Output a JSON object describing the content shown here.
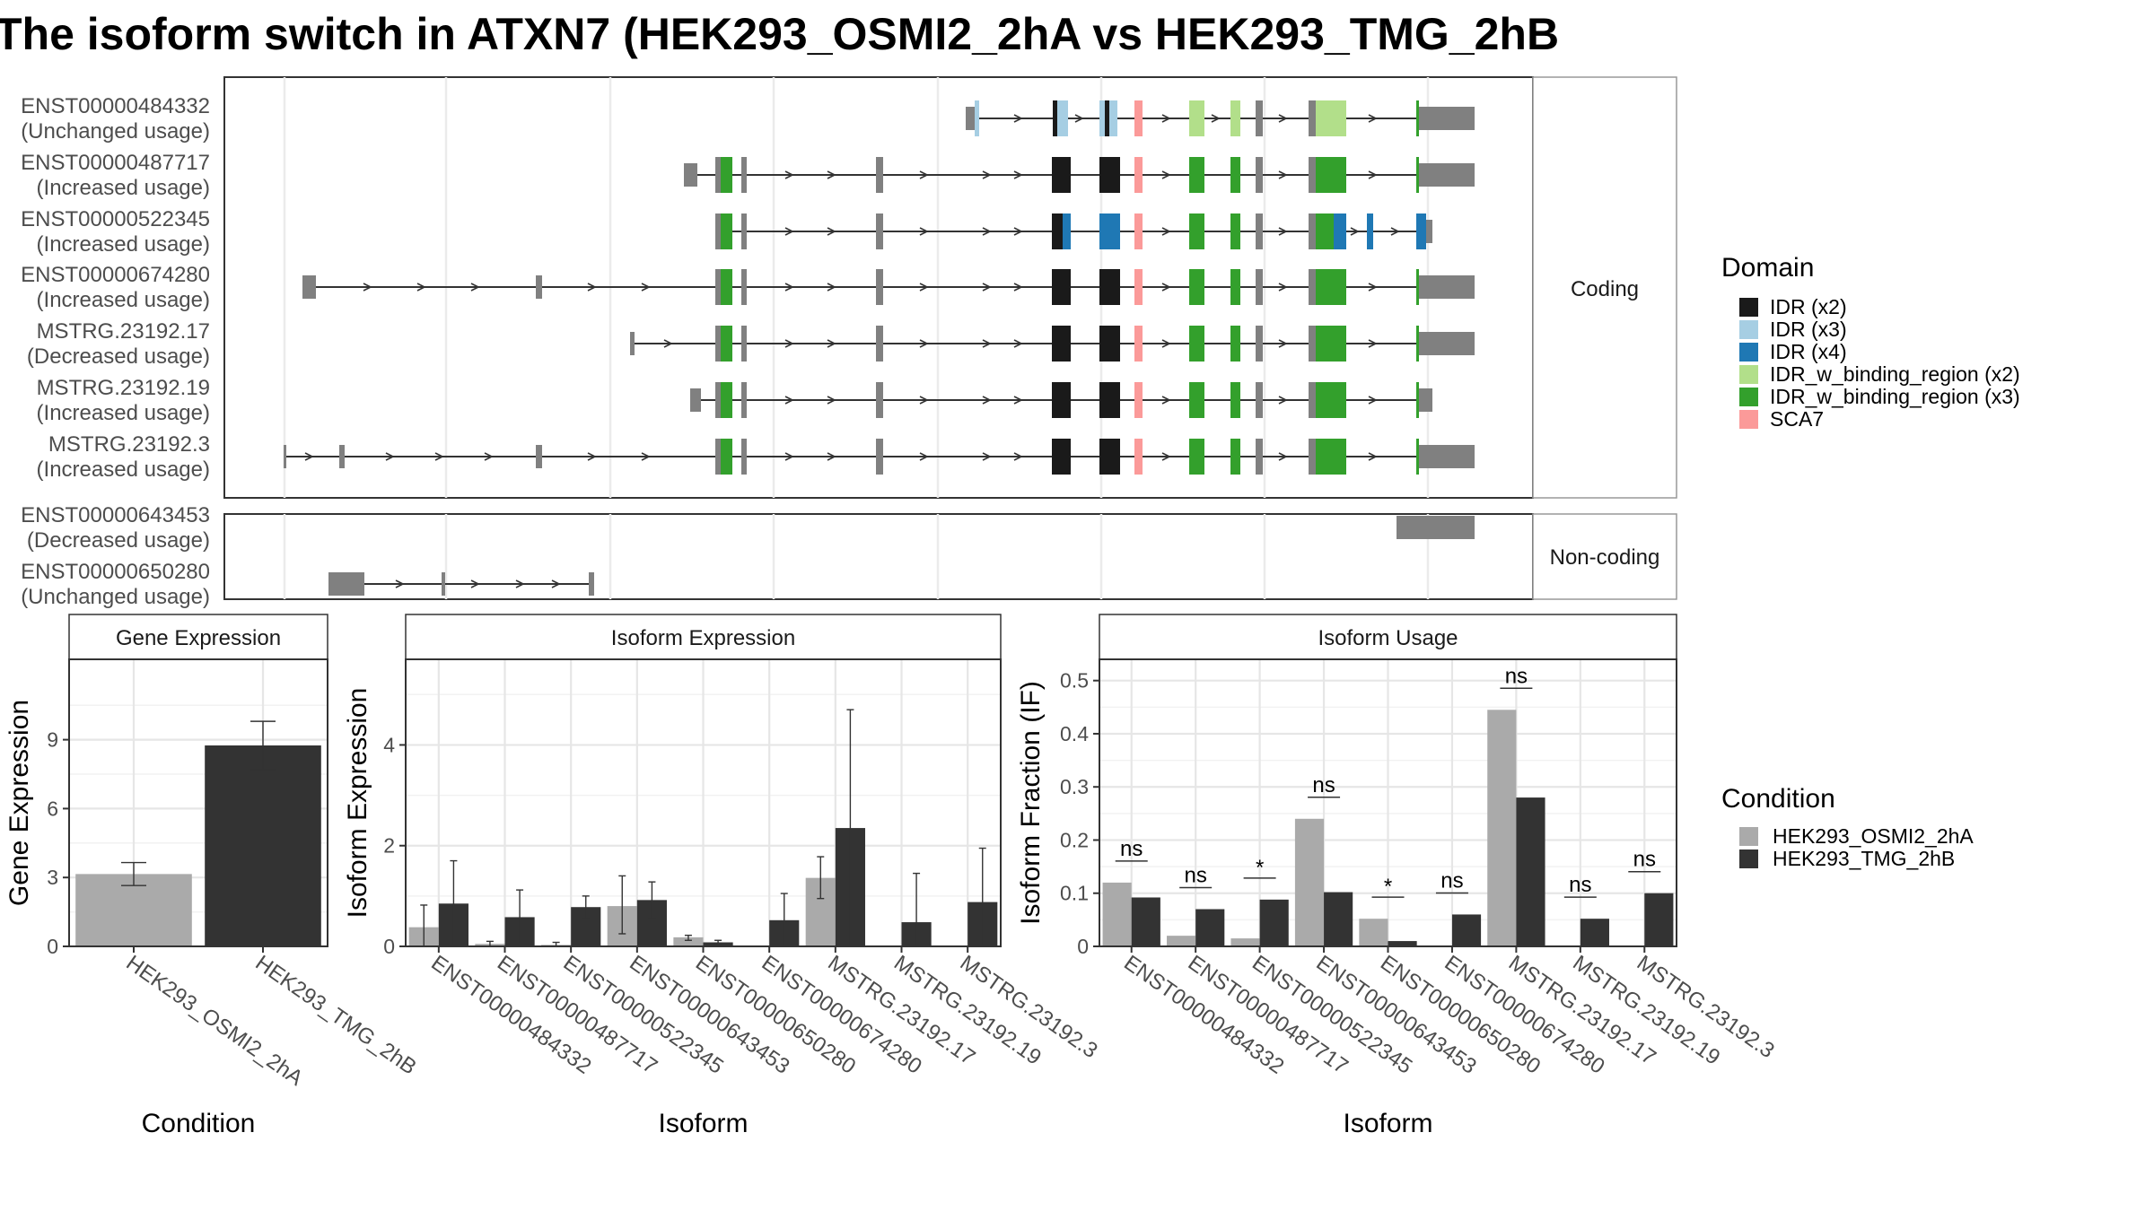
{
  "title": "The isoform switch in ATXN7 (HEK293_OSMI2_2hA vs HEK293_TMG_2hB",
  "colors": {
    "intron": "#808080",
    "utr": "#808080",
    "domain_IDR_x2": "#1a1a1a",
    "domain_IDR_x3": "#a6cee3",
    "domain_IDR_x4": "#1f78b4",
    "domain_IDR_w_binding_x2": "#b2df8a",
    "domain_IDR_w_binding_x3": "#33a02c",
    "domain_SCA7": "#fb9a99",
    "cond_A": "#aaaaaa",
    "cond_B": "#333333"
  },
  "structure": {
    "coding_label": "Coding",
    "noncoding_label": "Non-coding",
    "coding_isoforms": [
      {
        "id": "ENST00000484332",
        "usage": "(Unchanged usage)"
      },
      {
        "id": "ENST00000487717",
        "usage": "(Increased usage)"
      },
      {
        "id": "ENST00000522345",
        "usage": "(Increased usage)"
      },
      {
        "id": "ENST00000674280",
        "usage": "(Increased usage)"
      },
      {
        "id": "MSTRG.23192.17",
        "usage": "(Decreased usage)"
      },
      {
        "id": "MSTRG.23192.19",
        "usage": "(Increased usage)"
      },
      {
        "id": "MSTRG.23192.3",
        "usage": "(Increased usage)"
      }
    ],
    "noncoding_isoforms": [
      {
        "id": "ENST00000643453",
        "usage": "(Decreased usage)"
      },
      {
        "id": "ENST00000650280",
        "usage": "(Unchanged usage)"
      }
    ]
  },
  "legend": {
    "domain_title": "Domain",
    "domain_items": [
      {
        "label": "IDR (x2)",
        "color": "#1a1a1a"
      },
      {
        "label": "IDR (x3)",
        "color": "#a6cee3"
      },
      {
        "label": "IDR (x4)",
        "color": "#1f78b4"
      },
      {
        "label": "IDR_w_binding_region (x2)",
        "color": "#b2df8a"
      },
      {
        "label": "IDR_w_binding_region (x3)",
        "color": "#33a02c"
      },
      {
        "label": "SCA7",
        "color": "#fb9a99"
      }
    ],
    "condition_title": "Condition",
    "condition_items": [
      {
        "label": "HEK293_OSMI2_2hA",
        "color": "#aaaaaa"
      },
      {
        "label": "HEK293_TMG_2hB",
        "color": "#333333"
      }
    ]
  },
  "chart_data": [
    {
      "type": "bar",
      "title": "Gene Expression",
      "xlabel": "Condition",
      "ylabel": "Gene Expression",
      "ylim": [
        0,
        12.5
      ],
      "yticks": [
        0,
        3,
        6,
        9
      ],
      "categories": [
        "HEK293_OSMI2_2hA",
        "HEK293_TMG_2hB"
      ],
      "values": [
        3.15,
        8.75
      ],
      "errors": [
        [
          2.65,
          3.65
        ],
        [
          7.7,
          9.8
        ]
      ]
    },
    {
      "type": "bar",
      "title": "Isoform Expression",
      "xlabel": "Isoform",
      "ylabel": "Isoform Expression",
      "ylim": [
        0,
        5.7
      ],
      "yticks": [
        0,
        2,
        4
      ],
      "categories": [
        "ENST00000484332",
        "ENST00000487717",
        "ENST00000522345",
        "ENST00000643453",
        "ENST00000650280",
        "ENST00000674280",
        "MSTRG.23192.17",
        "MSTRG.23192.19",
        "MSTRG.23192.3"
      ],
      "series": [
        {
          "name": "HEK293_OSMI2_2hA",
          "values": [
            0.38,
            0.05,
            0.03,
            0.8,
            0.18,
            0.0,
            1.36,
            0.0,
            0.0
          ],
          "errors": [
            [
              0.0,
              0.82
            ],
            [
              0.0,
              0.1
            ],
            [
              0.0,
              0.08
            ],
            [
              0.25,
              1.4
            ],
            [
              0.12,
              0.22
            ],
            [
              0.0,
              0.0
            ],
            [
              0.95,
              1.78
            ],
            [
              0.0,
              0.0
            ],
            [
              0.0,
              0.0
            ]
          ]
        },
        {
          "name": "HEK293_TMG_2hB",
          "values": [
            0.85,
            0.58,
            0.78,
            0.92,
            0.08,
            0.52,
            2.35,
            0.48,
            0.88
          ],
          "errors": [
            [
              0.02,
              1.7
            ],
            [
              0.05,
              1.12
            ],
            [
              0.55,
              1.0
            ],
            [
              0.55,
              1.28
            ],
            [
              0.04,
              0.12
            ],
            [
              0.0,
              1.05
            ],
            [
              0.0,
              4.7
            ],
            [
              0.0,
              1.45
            ],
            [
              0.0,
              1.95
            ]
          ]
        }
      ]
    },
    {
      "type": "bar",
      "title": "Isoform Usage",
      "xlabel": "Isoform",
      "ylabel": "Isoform Fraction (IF)",
      "ylim": [
        0,
        0.54
      ],
      "yticks": [
        0.0,
        0.1,
        0.2,
        0.3,
        0.4,
        0.5
      ],
      "categories": [
        "ENST00000484332",
        "ENST00000487717",
        "ENST00000522345",
        "ENST00000643453",
        "ENST00000650280",
        "ENST00000674280",
        "MSTRG.23192.17",
        "MSTRG.23192.19",
        "MSTRG.23192.3"
      ],
      "series": [
        {
          "name": "HEK293_OSMI2_2hA",
          "values": [
            0.12,
            0.02,
            0.015,
            0.24,
            0.052,
            0.0,
            0.445,
            0.0,
            0.0
          ]
        },
        {
          "name": "HEK293_TMG_2hB",
          "values": [
            0.092,
            0.07,
            0.088,
            0.102,
            0.01,
            0.06,
            0.28,
            0.052,
            0.1
          ]
        }
      ],
      "significance": [
        "ns",
        "ns",
        "*",
        "ns",
        "*",
        "ns",
        "ns",
        "ns",
        "ns"
      ]
    }
  ]
}
